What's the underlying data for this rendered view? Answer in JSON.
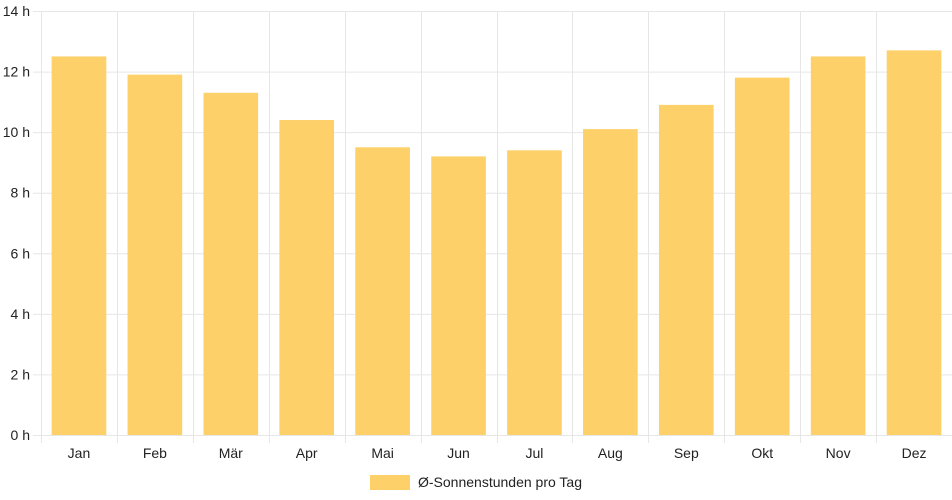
{
  "chart_data": {
    "type": "bar",
    "categories": [
      "Jan",
      "Feb",
      "Mär",
      "Apr",
      "Mai",
      "Jun",
      "Jul",
      "Aug",
      "Sep",
      "Okt",
      "Nov",
      "Dez"
    ],
    "series": [
      {
        "name": "Ø-Sonnenstunden pro Tag",
        "values": [
          12.5,
          11.9,
          11.3,
          10.4,
          9.5,
          9.2,
          9.4,
          10.1,
          10.9,
          11.8,
          12.5,
          12.7
        ],
        "color": "#fed06a"
      }
    ],
    "y_ticks": [
      "0 h",
      "2 h",
      "4 h",
      "6 h",
      "8 h",
      "10 h",
      "12 h",
      "14 h"
    ],
    "ylim": [
      0,
      14
    ],
    "y_step": 2,
    "grid": true,
    "grid_color": "#e6e6e6",
    "legend_position": "bottom-center"
  }
}
